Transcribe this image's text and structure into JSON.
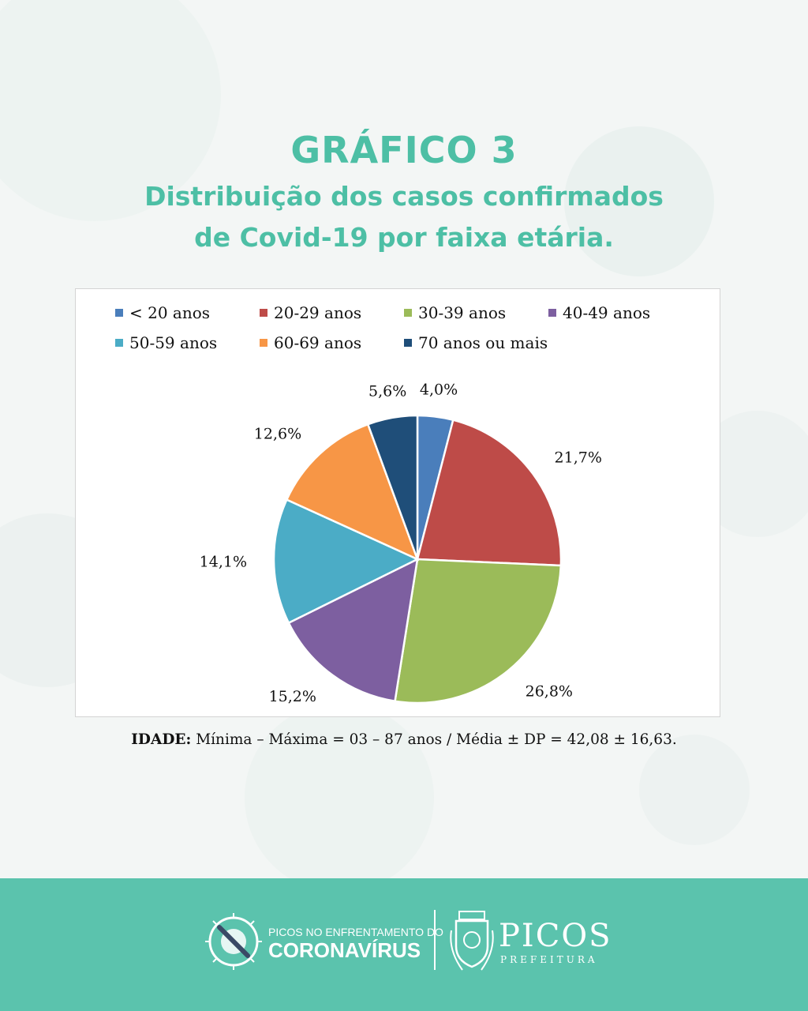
{
  "header": {
    "title": "GRÁFICO 3",
    "subtitle_line1": "Distribuição dos casos confirmados",
    "subtitle_line2": "de Covid-19 por faixa etária."
  },
  "chart_data": {
    "type": "pie",
    "categories": [
      "< 20 anos",
      "20-29 anos",
      "30-39 anos",
      "40-49 anos",
      "50-59 anos",
      "60-69 anos",
      "70 anos ou mais"
    ],
    "values": [
      4.0,
      21.7,
      26.8,
      15.2,
      14.1,
      12.6,
      5.6
    ],
    "value_labels": [
      "4,0%",
      "21,7%",
      "26,8%",
      "15,2%",
      "14,1%",
      "12,6%",
      "5,6%"
    ],
    "colors": [
      "#4a7ebb",
      "#be4b48",
      "#9bbb59",
      "#7d5fa0",
      "#4bacc6",
      "#f79646",
      "#1f4e79"
    ],
    "legend_position": "top",
    "start_angle": "12 o'clock, clockwise"
  },
  "stats": {
    "label": "IDADE:",
    "text": " Mínima – Máxima = 03 – 87 anos / Média ± DP = 42,08 ± 16,63."
  },
  "footer": {
    "campaign_line1": "PICOS NO ENFRENTAMENTO DO",
    "campaign_line2": "CORONAVÍRUS",
    "city_name": "PICOS",
    "city_sub": "PREFEITURA",
    "left_logo_icon": "virus-prohibited-icon",
    "right_logo_icon": "city-coat-of-arms-icon",
    "accent_color": "#5bc3ad"
  }
}
